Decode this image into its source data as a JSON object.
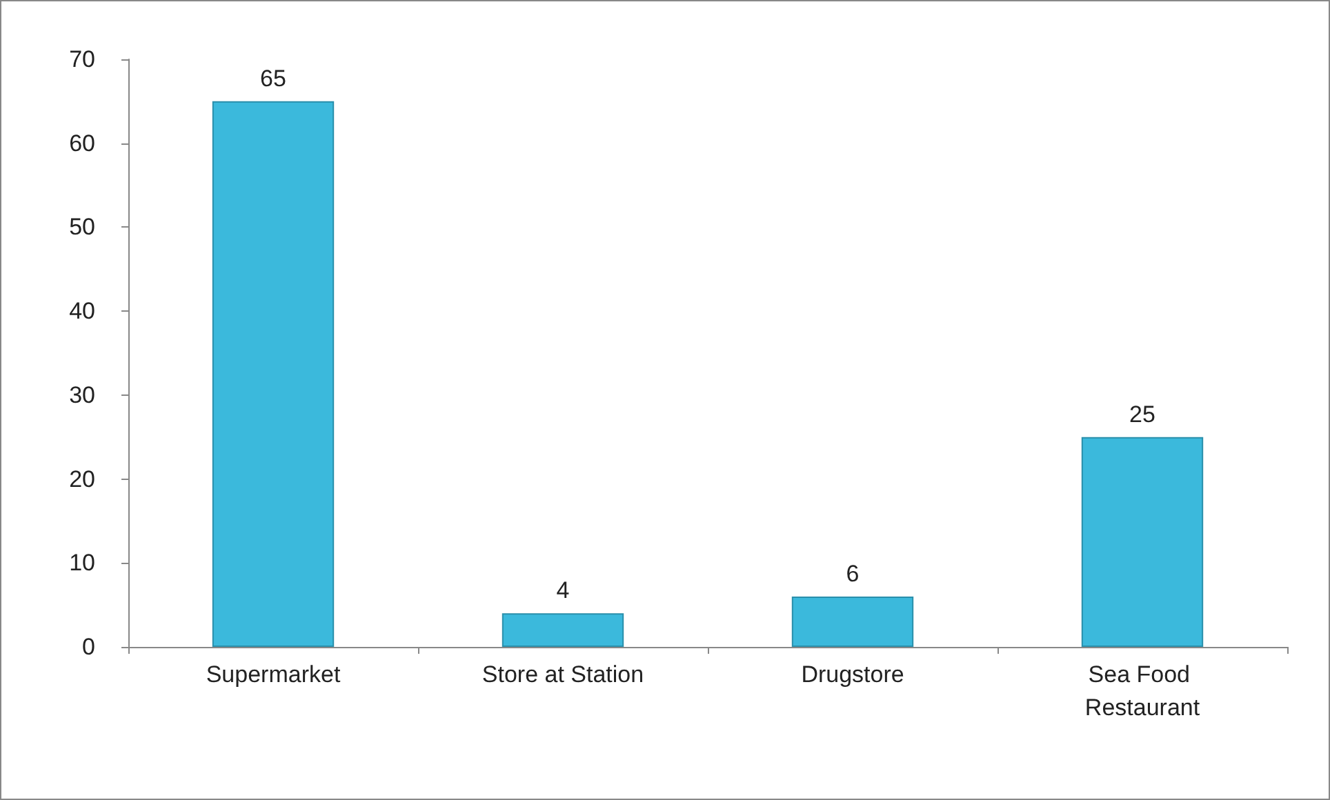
{
  "chart_data": {
    "type": "bar",
    "categories": [
      "Supermarket",
      "Store at Station",
      "Drugstore",
      "Sea Food Restaurant"
    ],
    "values": [
      65,
      4,
      6,
      25
    ],
    "color": "#3bb9dc",
    "ylim": [
      0,
      70
    ],
    "yticks": [
      0,
      10,
      20,
      30,
      40,
      50,
      60,
      70
    ],
    "grid": false,
    "data_labels": true
  }
}
